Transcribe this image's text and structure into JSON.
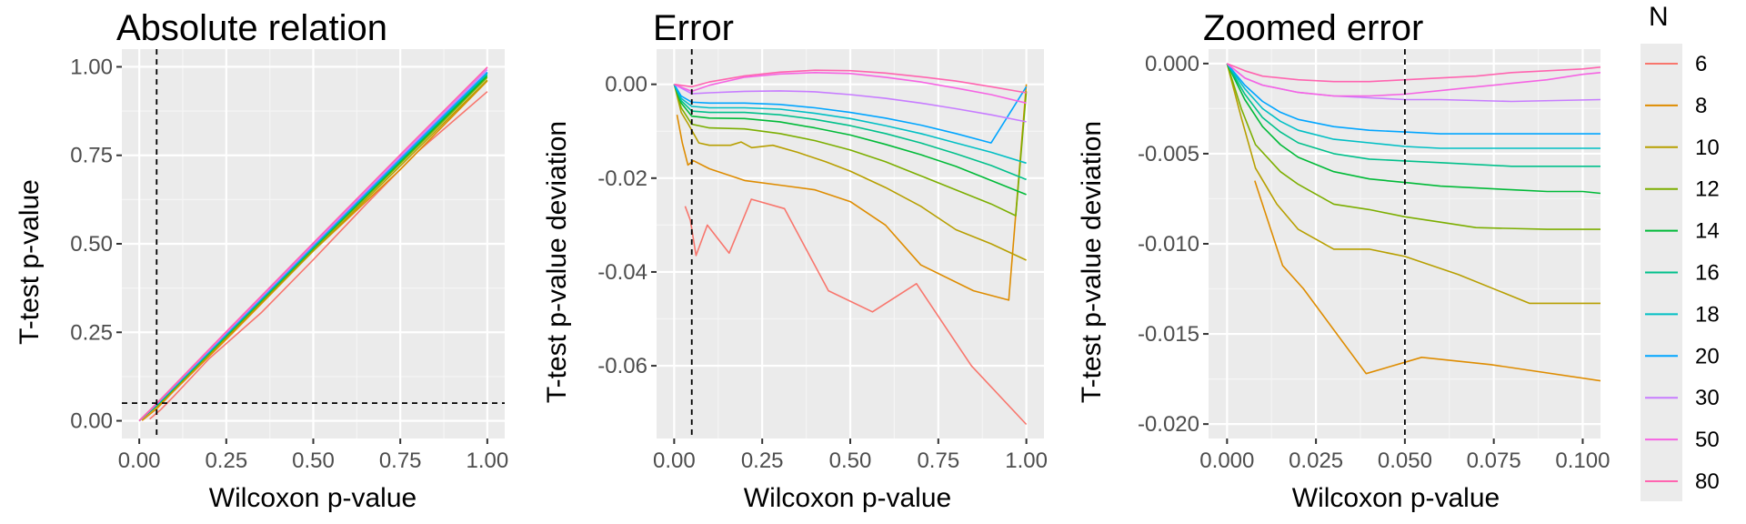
{
  "colors": {
    "panel_bg": "#EBEBEB",
    "grid_major": "#FFFFFF",
    "grid_minor": "#F5F5F5",
    "ref_line": "#000000",
    "tick_text": "#4D4D4D"
  },
  "legend": {
    "title": "N",
    "entries": [
      {
        "label": "6",
        "color": "#F8766D"
      },
      {
        "label": "8",
        "color": "#DE8C00"
      },
      {
        "label": "10",
        "color": "#B79F00"
      },
      {
        "label": "12",
        "color": "#7CAE00"
      },
      {
        "label": "14",
        "color": "#00BA38"
      },
      {
        "label": "16",
        "color": "#00C08B"
      },
      {
        "label": "18",
        "color": "#00BFC4"
      },
      {
        "label": "20",
        "color": "#00A5FF"
      },
      {
        "label": "30",
        "color": "#C77CFF"
      },
      {
        "label": "50",
        "color": "#F564E3"
      },
      {
        "label": "80",
        "color": "#FF64B0"
      }
    ]
  },
  "chart_data": [
    {
      "type": "line",
      "title": "Absolute relation",
      "xlabel": "Wilcoxon p-value",
      "ylabel": "T-test p-value",
      "xlim": [
        -0.05,
        1.05
      ],
      "ylim": [
        -0.05,
        1.05
      ],
      "xticks": [
        0,
        0.25,
        0.5,
        0.75,
        1
      ],
      "xtick_labels": [
        "0.00",
        "0.25",
        "0.50",
        "0.75",
        "1.00"
      ],
      "yticks": [
        0,
        0.25,
        0.5,
        0.75,
        1
      ],
      "ytick_labels": [
        "0.00",
        "0.25",
        "0.50",
        "0.75",
        "1.00"
      ],
      "ref_lines": {
        "vline": 0.05,
        "hline": 0.05
      },
      "grid": true,
      "series": [
        {
          "name": "6",
          "x": [
            0.03,
            0.06,
            0.1,
            0.2,
            0.35,
            0.5,
            0.65,
            0.8,
            1.0
          ],
          "y": [
            0.005,
            0.03,
            0.07,
            0.175,
            0.305,
            0.455,
            0.61,
            0.76,
            0.93
          ]
        },
        {
          "name": "8",
          "x": [
            0.008,
            0.05,
            0.1,
            0.25,
            0.5,
            0.75,
            1.0
          ],
          "y": [
            0.001,
            0.034,
            0.085,
            0.23,
            0.48,
            0.71,
            0.96
          ]
        },
        {
          "name": "10",
          "x": [
            0.0,
            0.05,
            0.25,
            0.5,
            0.75,
            1.0
          ],
          "y": [
            0.0,
            0.04,
            0.235,
            0.48,
            0.72,
            0.963
          ]
        },
        {
          "name": "12",
          "x": [
            0.0,
            0.05,
            0.25,
            0.5,
            0.75,
            1.0
          ],
          "y": [
            0.0,
            0.042,
            0.238,
            0.485,
            0.727,
            0.97
          ]
        },
        {
          "name": "14",
          "x": [
            0.0,
            0.05,
            0.25,
            0.5,
            0.75,
            1.0
          ],
          "y": [
            0.0,
            0.043,
            0.24,
            0.488,
            0.732,
            0.975
          ]
        },
        {
          "name": "16",
          "x": [
            0.0,
            0.05,
            0.25,
            0.5,
            0.75,
            1.0
          ],
          "y": [
            0.0,
            0.044,
            0.242,
            0.49,
            0.736,
            0.98
          ]
        },
        {
          "name": "18",
          "x": [
            0.0,
            0.05,
            0.25,
            0.5,
            0.75,
            1.0
          ],
          "y": [
            0.0,
            0.045,
            0.244,
            0.492,
            0.738,
            0.983
          ]
        },
        {
          "name": "20",
          "x": [
            0.0,
            0.05,
            0.25,
            0.5,
            0.75,
            1.0
          ],
          "y": [
            0.0,
            0.046,
            0.245,
            0.494,
            0.74,
            0.985
          ]
        },
        {
          "name": "30",
          "x": [
            0.0,
            0.05,
            0.25,
            0.5,
            0.75,
            1.0
          ],
          "y": [
            0.0,
            0.048,
            0.248,
            0.497,
            0.745,
            0.992
          ]
        },
        {
          "name": "50",
          "x": [
            0.0,
            0.05,
            0.25,
            0.5,
            0.75,
            1.0
          ],
          "y": [
            0.0,
            0.049,
            0.251,
            0.502,
            0.751,
            0.998
          ]
        },
        {
          "name": "80",
          "x": [
            0.0,
            0.05,
            0.25,
            0.5,
            0.75,
            1.0
          ],
          "y": [
            0.0,
            0.049,
            0.252,
            0.502,
            0.752,
            0.999
          ]
        }
      ]
    },
    {
      "type": "line",
      "title": "Error",
      "xlabel": "Wilcoxon p-value",
      "ylabel": "T-test p-value deviation",
      "xlim": [
        -0.05,
        1.05
      ],
      "ylim": [
        -0.0755,
        0.0075
      ],
      "xticks": [
        0,
        0.25,
        0.5,
        0.75,
        1
      ],
      "xtick_labels": [
        "0.00",
        "0.25",
        "0.50",
        "0.75",
        "1.00"
      ],
      "yticks": [
        0,
        -0.02,
        -0.04,
        -0.06
      ],
      "ytick_labels": [
        "0.00",
        "-0.02",
        "-0.04",
        "-0.06"
      ],
      "ref_lines": {
        "vline": 0.05
      },
      "grid": true,
      "series": [
        {
          "name": "6",
          "x": [
            0.031,
            0.046,
            0.062,
            0.094,
            0.156,
            0.219,
            0.313,
            0.438,
            0.563,
            0.688,
            0.844,
            1.0
          ],
          "y": [
            -0.026,
            -0.029,
            -0.0365,
            -0.03,
            -0.036,
            -0.0245,
            -0.0265,
            -0.044,
            -0.0485,
            -0.0425,
            -0.06,
            -0.0725
          ]
        },
        {
          "name": "8",
          "x": [
            0.008,
            0.023,
            0.039,
            0.055,
            0.1,
            0.2,
            0.3,
            0.4,
            0.5,
            0.6,
            0.7,
            0.85,
            0.95,
            1.0
          ],
          "y": [
            -0.0065,
            -0.0125,
            -0.0172,
            -0.0163,
            -0.018,
            -0.0205,
            -0.0215,
            -0.0225,
            -0.025,
            -0.03,
            -0.0385,
            -0.044,
            -0.046,
            0.0
          ]
        },
        {
          "name": "10",
          "x": [
            0.0,
            0.02,
            0.04,
            0.07,
            0.1,
            0.16,
            0.19,
            0.22,
            0.28,
            0.35,
            0.43,
            0.5,
            0.6,
            0.7,
            0.8,
            0.9,
            1.0
          ],
          "y": [
            0.0,
            -0.006,
            -0.0085,
            -0.0125,
            -0.013,
            -0.013,
            -0.0123,
            -0.0135,
            -0.013,
            -0.0145,
            -0.0165,
            -0.0185,
            -0.022,
            -0.026,
            -0.031,
            -0.034,
            -0.0375
          ]
        },
        {
          "name": "12",
          "x": [
            0.0,
            0.02,
            0.05,
            0.1,
            0.2,
            0.3,
            0.4,
            0.5,
            0.6,
            0.7,
            0.8,
            0.9,
            0.97,
            1.0
          ],
          "y": [
            0.0,
            -0.005,
            -0.0085,
            -0.0093,
            -0.0095,
            -0.0105,
            -0.012,
            -0.014,
            -0.0165,
            -0.0195,
            -0.0225,
            -0.0255,
            -0.028,
            -0.0015
          ]
        },
        {
          "name": "14",
          "x": [
            0.0,
            0.02,
            0.05,
            0.1,
            0.2,
            0.3,
            0.4,
            0.5,
            0.6,
            0.7,
            0.8,
            0.9,
            1.0
          ],
          "y": [
            0.0,
            -0.004,
            -0.0068,
            -0.0072,
            -0.0073,
            -0.008,
            -0.0093,
            -0.0108,
            -0.0128,
            -0.015,
            -0.0175,
            -0.0205,
            -0.0235
          ]
        },
        {
          "name": "16",
          "x": [
            0.0,
            0.02,
            0.05,
            0.1,
            0.2,
            0.3,
            0.4,
            0.5,
            0.6,
            0.7,
            0.8,
            0.9,
            1.0
          ],
          "y": [
            0.0,
            -0.0035,
            -0.0057,
            -0.006,
            -0.006,
            -0.0065,
            -0.0075,
            -0.0088,
            -0.0105,
            -0.0125,
            -0.0148,
            -0.0173,
            -0.0203
          ]
        },
        {
          "name": "18",
          "x": [
            0.0,
            0.02,
            0.05,
            0.1,
            0.2,
            0.3,
            0.4,
            0.5,
            0.6,
            0.7,
            0.8,
            0.9,
            1.0
          ],
          "y": [
            0.0,
            -0.003,
            -0.0047,
            -0.005,
            -0.005,
            -0.0053,
            -0.0062,
            -0.0073,
            -0.0088,
            -0.0105,
            -0.0125,
            -0.0145,
            -0.0168
          ]
        },
        {
          "name": "20",
          "x": [
            0.0,
            0.02,
            0.05,
            0.1,
            0.2,
            0.3,
            0.4,
            0.5,
            0.6,
            0.7,
            0.8,
            0.9,
            1.0
          ],
          "y": [
            0.0,
            -0.0025,
            -0.0038,
            -0.004,
            -0.004,
            -0.0043,
            -0.005,
            -0.006,
            -0.0072,
            -0.0087,
            -0.0105,
            -0.0125,
            -0.0005
          ]
        },
        {
          "name": "30",
          "x": [
            0.0,
            0.05,
            0.1,
            0.2,
            0.3,
            0.4,
            0.5,
            0.6,
            0.7,
            0.8,
            0.9,
            1.0
          ],
          "y": [
            0.0,
            -0.002,
            -0.0018,
            -0.0015,
            -0.0014,
            -0.0016,
            -0.0022,
            -0.003,
            -0.004,
            -0.0052,
            -0.0065,
            -0.008
          ]
        },
        {
          "name": "50",
          "x": [
            0.0,
            0.05,
            0.1,
            0.2,
            0.3,
            0.4,
            0.5,
            0.6,
            0.7,
            0.8,
            0.9,
            1.0
          ],
          "y": [
            0.0,
            -0.0015,
            -0.0002,
            0.0015,
            0.0022,
            0.0025,
            0.0023,
            0.0015,
            0.0005,
            -0.0008,
            -0.0022,
            -0.004
          ]
        },
        {
          "name": "80",
          "x": [
            0.0,
            0.05,
            0.1,
            0.2,
            0.3,
            0.4,
            0.5,
            0.6,
            0.7,
            0.8,
            0.9,
            1.0
          ],
          "y": [
            0.0,
            -0.0005,
            0.0005,
            0.0018,
            0.0026,
            0.003,
            0.0029,
            0.0024,
            0.0016,
            0.0007,
            -0.0005,
            -0.0018
          ]
        }
      ]
    },
    {
      "type": "line",
      "title": "Zoomed error",
      "xlabel": "Wilcoxon p-value",
      "ylabel": "T-test p-value deviation",
      "xlim": [
        -0.0052,
        0.105
      ],
      "ylim": [
        -0.0208,
        0.0008
      ],
      "xticks": [
        0,
        0.025,
        0.05,
        0.075,
        0.1
      ],
      "xtick_labels": [
        "0.000",
        "0.025",
        "0.050",
        "0.075",
        "0.100"
      ],
      "yticks": [
        0,
        -0.005,
        -0.01,
        -0.015,
        -0.02
      ],
      "ytick_labels": [
        "0.000",
        "-0.005",
        "-0.010",
        "-0.015",
        "-0.020"
      ],
      "ref_lines": {
        "vline": 0.05
      },
      "grid": true,
      "series": [
        {
          "name": "8",
          "x": [
            0.0078,
            0.0156,
            0.0215,
            0.0391,
            0.0547,
            0.0742,
            0.105
          ],
          "y": [
            -0.0065,
            -0.0112,
            -0.0125,
            -0.0172,
            -0.0163,
            -0.0167,
            -0.0176
          ]
        },
        {
          "name": "10",
          "x": [
            0.0,
            0.004,
            0.008,
            0.014,
            0.02,
            0.03,
            0.04,
            0.05,
            0.065,
            0.085,
            0.105
          ],
          "y": [
            0.0,
            -0.003,
            -0.0058,
            -0.0078,
            -0.0092,
            -0.0103,
            -0.0103,
            -0.0107,
            -0.0117,
            -0.0133,
            -0.0133
          ]
        },
        {
          "name": "12",
          "x": [
            0.0,
            0.004,
            0.008,
            0.015,
            0.02,
            0.03,
            0.04,
            0.05,
            0.06,
            0.07,
            0.09,
            0.105
          ],
          "y": [
            0.0,
            -0.0025,
            -0.0045,
            -0.006,
            -0.0067,
            -0.0078,
            -0.0081,
            -0.0085,
            -0.0088,
            -0.0091,
            -0.0092,
            -0.0092
          ]
        },
        {
          "name": "14",
          "x": [
            0.0,
            0.005,
            0.01,
            0.015,
            0.02,
            0.03,
            0.04,
            0.05,
            0.06,
            0.07,
            0.08,
            0.09,
            0.1,
            0.105
          ],
          "y": [
            0.0,
            -0.002,
            -0.0035,
            -0.0045,
            -0.0052,
            -0.006,
            -0.0064,
            -0.0066,
            -0.0068,
            -0.0069,
            -0.007,
            -0.0071,
            -0.0071,
            -0.0072
          ]
        },
        {
          "name": "16",
          "x": [
            0.0,
            0.005,
            0.01,
            0.015,
            0.02,
            0.03,
            0.04,
            0.05,
            0.06,
            0.07,
            0.08,
            0.09,
            0.1,
            0.105
          ],
          "y": [
            0.0,
            -0.0017,
            -0.003,
            -0.0038,
            -0.0044,
            -0.005,
            -0.0053,
            -0.0054,
            -0.0055,
            -0.0056,
            -0.0057,
            -0.0057,
            -0.0057,
            -0.0057
          ]
        },
        {
          "name": "18",
          "x": [
            0.0,
            0.005,
            0.01,
            0.015,
            0.02,
            0.03,
            0.04,
            0.05,
            0.06,
            0.07,
            0.08,
            0.09,
            0.1,
            0.105
          ],
          "y": [
            0.0,
            -0.0014,
            -0.0025,
            -0.0032,
            -0.0037,
            -0.0042,
            -0.0044,
            -0.0046,
            -0.0047,
            -0.0047,
            -0.0047,
            -0.0047,
            -0.0047,
            -0.0047
          ]
        },
        {
          "name": "20",
          "x": [
            0.0,
            0.005,
            0.01,
            0.015,
            0.02,
            0.03,
            0.04,
            0.05,
            0.06,
            0.07,
            0.08,
            0.09,
            0.1,
            0.105
          ],
          "y": [
            0.0,
            -0.0012,
            -0.0021,
            -0.0027,
            -0.0031,
            -0.0035,
            -0.0037,
            -0.0038,
            -0.0039,
            -0.0039,
            -0.0039,
            -0.0039,
            -0.0039,
            -0.0039
          ]
        },
        {
          "name": "30",
          "x": [
            0.0,
            0.005,
            0.01,
            0.02,
            0.03,
            0.04,
            0.05,
            0.06,
            0.08,
            0.105
          ],
          "y": [
            0.0,
            -0.0008,
            -0.0012,
            -0.0016,
            -0.0018,
            -0.0019,
            -0.002,
            -0.002,
            -0.0021,
            -0.002
          ]
        },
        {
          "name": "50",
          "x": [
            0.0,
            0.005,
            0.01,
            0.02,
            0.03,
            0.04,
            0.05,
            0.06,
            0.07,
            0.08,
            0.09,
            0.1,
            0.105
          ],
          "y": [
            0.0,
            -0.0008,
            -0.0012,
            -0.0016,
            -0.0018,
            -0.0018,
            -0.0017,
            -0.0015,
            -0.0013,
            -0.0011,
            -0.0009,
            -0.0006,
            -0.0005
          ]
        },
        {
          "name": "80",
          "x": [
            0.0,
            0.005,
            0.01,
            0.02,
            0.03,
            0.04,
            0.05,
            0.06,
            0.07,
            0.08,
            0.09,
            0.1,
            0.105
          ],
          "y": [
            0.0,
            -0.0004,
            -0.0007,
            -0.0009,
            -0.001,
            -0.001,
            -0.0009,
            -0.0008,
            -0.0007,
            -0.0005,
            -0.0004,
            -0.0003,
            -0.0002
          ]
        }
      ]
    }
  ]
}
